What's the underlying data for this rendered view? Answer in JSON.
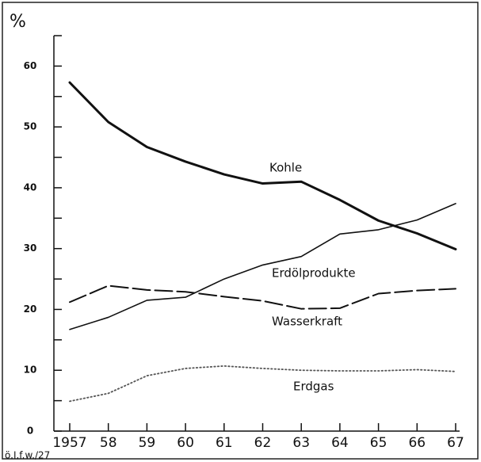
{
  "chart_data": {
    "type": "line",
    "y_label": "%",
    "note": "ö.I.f.w./27",
    "categories": [
      "1957",
      "58",
      "59",
      "60",
      "61",
      "62",
      "63",
      "64",
      "65",
      "66",
      "67"
    ],
    "series": [
      {
        "name": "Kohle",
        "color": "#111111",
        "style": "solid-thick",
        "values": [
          57.3,
          50.8,
          46.7,
          44.3,
          42.2,
          40.7,
          41.0,
          38.0,
          34.6,
          32.5,
          29.9
        ]
      },
      {
        "name": "Erdölprodukte",
        "color": "#111111",
        "style": "solid",
        "values": [
          16.7,
          18.7,
          21.5,
          22.0,
          25.0,
          27.3,
          28.7,
          32.4,
          33.1,
          34.7,
          37.4
        ]
      },
      {
        "name": "Wasserkraft",
        "color": "#111111",
        "style": "dashed",
        "values": [
          21.2,
          23.9,
          23.2,
          22.9,
          22.1,
          21.4,
          20.1,
          20.2,
          22.6,
          23.1,
          23.4
        ]
      },
      {
        "name": "Erdgas",
        "color": "#555555",
        "style": "dotted",
        "values": [
          4.9,
          6.2,
          9.1,
          10.3,
          10.7,
          10.3,
          10.0,
          9.9,
          9.9,
          10.1,
          9.8
        ]
      }
    ],
    "ylim": [
      0,
      65
    ],
    "yticks": [
      0,
      10,
      20,
      30,
      40,
      50,
      60
    ],
    "yminor_ticks": [
      5,
      15,
      25,
      35,
      45,
      55,
      65
    ]
  }
}
